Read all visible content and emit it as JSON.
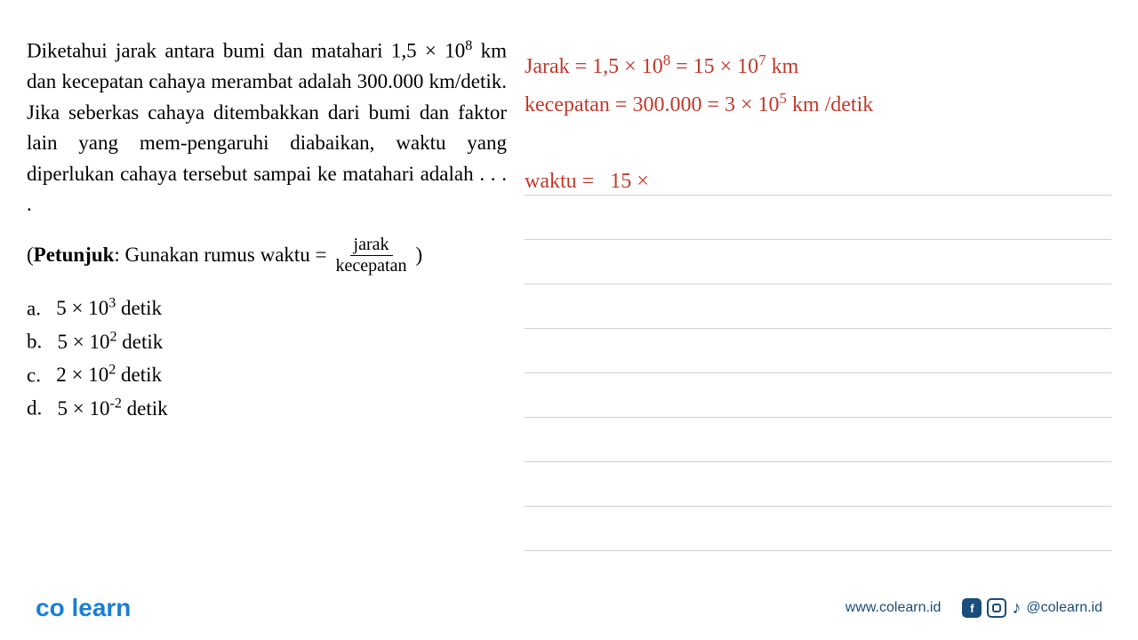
{
  "question": {
    "text_html": "Diketahui jarak antara bumi dan matahari 1,5 × 10<span class='sup'>8</span> km dan kecepatan cahaya merambat adalah 300.000 km/detik. Jika seberkas cahaya ditembakkan dari bumi dan faktor lain yang mem-pengaruhi diabaikan, waktu yang diperlukan cahaya tersebut sampai ke matahari adalah . . . .",
    "hint_label": "Petunjuk",
    "hint_text": ": Gunakan rumus waktu =",
    "hint_frac_num": "jarak",
    "hint_frac_den": "kecepatan",
    "hint_close": ")"
  },
  "options": {
    "a": "5 × 10<span class='sup'>3</span> detik",
    "b": "5 × 10<span class='sup'>2</span> detik",
    "c": "2 × 10<span class='sup'>2</span> detik",
    "d": "5 × 10<span class='sup'>-2</span> detik"
  },
  "handwriting": {
    "line1": "Jarak = 1,5 × 10<span class='sup'>8</span> = 15 × 10<span class='sup'>7</span> km",
    "line2": "kecepatan = 300.000 = 3 × 10<span class='sup'>5</span> km /detik",
    "line3": "waktu =&nbsp;&nbsp;&nbsp;15 ×&nbsp;&nbsp;"
  },
  "footer": {
    "logo_part1": "co",
    "logo_part2": "learn",
    "url": "www.colearn.id",
    "handle": "@colearn.id"
  },
  "styling": {
    "handwriting_color": "#c0392b",
    "brand_color": "#1a7fd4",
    "footer_color": "#1a4d7a",
    "rule_color": "#d0d0d0",
    "background": "#ffffff"
  }
}
